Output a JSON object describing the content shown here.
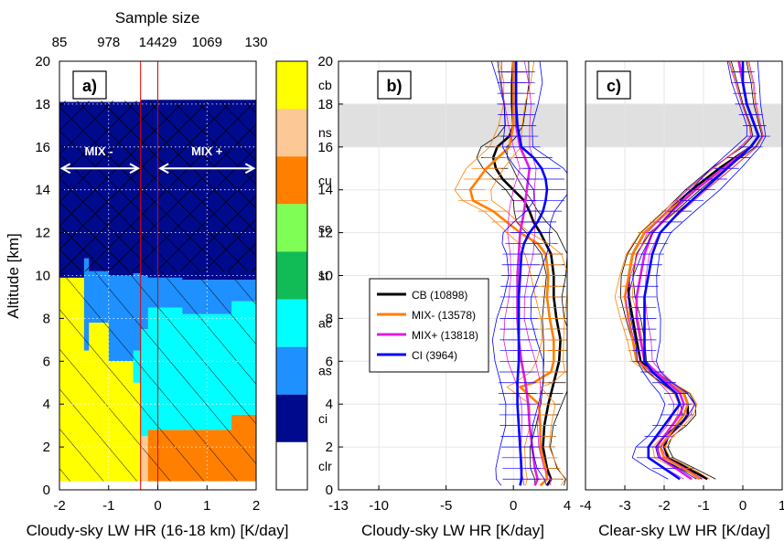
{
  "chart_data": [
    {
      "type": "heatmap",
      "panel_label": "a)",
      "xlabel": "Cloudy-sky LW HR (16-18 km) [K/day]",
      "ylabel": "Altitude [km]",
      "xlim": [
        -2,
        2
      ],
      "ylim": [
        0,
        20
      ],
      "x_ticks": [
        "-2",
        "-1",
        "0",
        "1",
        "2"
      ],
      "y_ticks": [
        "0",
        "2",
        "4",
        "6",
        "8",
        "10",
        "12",
        "14",
        "16",
        "18",
        "20"
      ],
      "top_axis": {
        "label": "Sample size",
        "ticks": [
          "85",
          "978",
          "14429",
          "1069",
          "130"
        ],
        "positions": [
          -2,
          -1,
          0,
          1,
          2
        ]
      },
      "classes": [
        "cb",
        "ns",
        "cu",
        "sc",
        "st",
        "ac",
        "as",
        "ci",
        "clr"
      ],
      "class_colors": {
        "cb": "#ffff00",
        "ns": "#fcc896",
        "cu": "#ff7f00",
        "sc": "#7fff55",
        "st": "#11bb55",
        "ac": "#00ffff",
        "as": "#1e90ff",
        "ci": "#000a8c",
        "clr": "#ffffff"
      },
      "region_labels": [
        "MIX -",
        "MIX +"
      ],
      "divider_x": [
        -0.35,
        0.0
      ],
      "columns": [
        {
          "x": [
            -2.0,
            -1.5
          ],
          "layers": [
            [
              "cb",
              0.4,
              9.9
            ],
            [
              "ci",
              9.9,
              18.1
            ]
          ]
        },
        {
          "x": [
            -1.5,
            -1.4
          ],
          "layers": [
            [
              "cb",
              0.4,
              6.5
            ],
            [
              "as",
              6.5,
              10.8
            ],
            [
              "ci",
              10.8,
              18.1
            ]
          ]
        },
        {
          "x": [
            -1.4,
            -1.0
          ],
          "layers": [
            [
              "cb",
              0.4,
              7.8
            ],
            [
              "as",
              7.8,
              10.2
            ],
            [
              "ci",
              10.2,
              18.1
            ]
          ]
        },
        {
          "x": [
            -1.0,
            -0.5
          ],
          "layers": [
            [
              "cb",
              0.4,
              6.0
            ],
            [
              "as",
              6.0,
              10.0
            ],
            [
              "ci",
              10.0,
              18.1
            ]
          ]
        },
        {
          "x": [
            -0.5,
            -0.35
          ],
          "layers": [
            [
              "cb",
              0.4,
              5.0
            ],
            [
              "ac",
              5.0,
              6.5
            ],
            [
              "as",
              6.5,
              10.1
            ],
            [
              "ci",
              10.1,
              18.1
            ]
          ]
        },
        {
          "x": [
            -0.35,
            -0.2
          ],
          "layers": [
            [
              "ns",
              0.4,
              2.5
            ],
            [
              "ac",
              2.5,
              7.5
            ],
            [
              "as",
              7.5,
              10.0
            ],
            [
              "ci",
              10.0,
              18.2
            ]
          ]
        },
        {
          "x": [
            -0.2,
            0.5
          ],
          "layers": [
            [
              "cu",
              0.4,
              2.8
            ],
            [
              "ac",
              2.8,
              8.5
            ],
            [
              "as",
              8.5,
              9.9
            ],
            [
              "ci",
              9.9,
              18.2
            ]
          ]
        },
        {
          "x": [
            0.5,
            1.5
          ],
          "layers": [
            [
              "cu",
              0.4,
              2.8
            ],
            [
              "ac",
              2.8,
              8.2
            ],
            [
              "as",
              8.2,
              9.8
            ],
            [
              "ci",
              9.8,
              18.2
            ]
          ]
        },
        {
          "x": [
            1.5,
            2.0
          ],
          "layers": [
            [
              "cu",
              0.4,
              3.5
            ],
            [
              "ac",
              3.5,
              8.8
            ],
            [
              "as",
              8.8,
              9.8
            ],
            [
              "ci",
              9.8,
              18.2
            ]
          ]
        }
      ]
    },
    {
      "type": "line",
      "panel_label": "b)",
      "xlabel": "Cloudy-sky LW HR [K/day]",
      "ylabel": "",
      "xlim": [
        -13,
        4
      ],
      "ylim": [
        0,
        20
      ],
      "x_ticks": [
        "-13",
        "-10",
        "-5",
        "0",
        "4"
      ],
      "x_tick_values": [
        -13,
        -10,
        -5,
        0,
        4
      ],
      "y_ticks": [
        "0",
        "2",
        "4",
        "6",
        "8",
        "10",
        "12",
        "14",
        "16",
        "18",
        "20"
      ],
      "shaded_band": [
        16,
        18
      ],
      "series": [
        {
          "name": "CB (10898)",
          "color": "#000000",
          "y": [
            0.2,
            0.5,
            1,
            2,
            3,
            4,
            5,
            6,
            7,
            8,
            9,
            10,
            11,
            12,
            12.5,
            13,
            13.5,
            14,
            14.5,
            15,
            15.5,
            16,
            16.5,
            17,
            18,
            19,
            20
          ],
          "x": [
            2.5,
            2.8,
            2.5,
            2.2,
            2.3,
            2.6,
            3.0,
            3.4,
            3.5,
            3.2,
            3.0,
            3.0,
            2.8,
            2.0,
            1.5,
            1.2,
            0.8,
            0.0,
            -0.8,
            -1.3,
            -1.5,
            -1.2,
            -0.3,
            0.0,
            -0.1,
            -0.1,
            0.0
          ]
        },
        {
          "name": "MIX- (13578)",
          "color": "#ff7f00",
          "y": [
            0.2,
            0.5,
            1,
            2,
            3,
            4,
            4.8,
            5,
            5.5,
            6,
            7,
            8,
            9,
            10,
            11,
            11.5,
            12,
            13,
            13.5,
            14,
            15,
            16,
            17,
            18,
            19,
            20
          ],
          "x": [
            2.0,
            2.5,
            2.4,
            2.0,
            2.0,
            1.9,
            0.5,
            1.5,
            2.8,
            3.0,
            3.0,
            2.7,
            2.5,
            2.6,
            2.4,
            1.8,
            0.5,
            -1.5,
            -3.0,
            -3.2,
            -2.0,
            -0.3,
            0.0,
            0.0,
            0.0,
            0.0
          ]
        },
        {
          "name": "MIX+ (13818)",
          "color": "#e01de0",
          "y": [
            0.2,
            0.5,
            1,
            2,
            3,
            4,
            5,
            6,
            7,
            8,
            9,
            10,
            11,
            12,
            13,
            14,
            15,
            16,
            17,
            18,
            19,
            20
          ],
          "x": [
            1.6,
            1.8,
            1.6,
            1.4,
            1.2,
            1.1,
            0.9,
            0.6,
            0.4,
            0.3,
            0.3,
            0.3,
            0.4,
            0.5,
            0.8,
            1.0,
            1.2,
            0.5,
            0.2,
            0.2,
            0.2,
            0.2
          ]
        },
        {
          "name": "CI (3964)",
          "color": "#0000ff",
          "y": [
            0.2,
            0.5,
            1,
            2,
            3,
            4,
            5,
            6,
            7,
            8,
            9,
            10,
            11,
            11.5,
            12,
            12.5,
            13,
            13.5,
            14,
            14.5,
            15,
            15.5,
            16,
            17,
            18,
            19,
            20
          ],
          "x": [
            0.5,
            0.6,
            0.6,
            0.5,
            0.4,
            0.3,
            0.3,
            0.4,
            0.4,
            0.4,
            0.4,
            0.5,
            0.6,
            0.8,
            1.2,
            1.8,
            2.2,
            2.4,
            2.5,
            2.4,
            2.1,
            1.5,
            0.6,
            0.3,
            0.2,
            0.2,
            0.2
          ]
        }
      ]
    },
    {
      "type": "line",
      "panel_label": "c)",
      "xlabel": "Clear-sky LW HR [K/day]",
      "ylabel": "",
      "xlim": [
        -4,
        1
      ],
      "ylim": [
        0,
        20
      ],
      "x_ticks": [
        "-4",
        "-3",
        "-2",
        "-1",
        "0",
        "1"
      ],
      "x_tick_values": [
        -4,
        -3,
        -2,
        -1,
        0,
        1
      ],
      "y_ticks": [
        "0",
        "2",
        "4",
        "6",
        "8",
        "10",
        "12",
        "14",
        "16",
        "18",
        "20"
      ],
      "shaded_band": [
        16,
        18
      ],
      "series": [
        {
          "name": "CB (10898)",
          "color": "#000000",
          "y": [
            0.5,
            1,
            1.5,
            2,
            2.5,
            3,
            3.5,
            4,
            4.5,
            5,
            5.5,
            6,
            7,
            8,
            9,
            10,
            11,
            12,
            13,
            14,
            15,
            16,
            16.5,
            17,
            18,
            19,
            20
          ],
          "x": [
            -0.9,
            -1.4,
            -1.9,
            -2.0,
            -1.9,
            -1.6,
            -1.4,
            -1.4,
            -1.5,
            -1.9,
            -2.3,
            -2.6,
            -2.7,
            -2.8,
            -2.9,
            -2.9,
            -2.8,
            -2.5,
            -1.9,
            -1.3,
            -0.6,
            0.2,
            0.4,
            0.3,
            0.1,
            0.0,
            -0.1
          ]
        },
        {
          "name": "MIX- (13578)",
          "color": "#ff7f00",
          "y": [
            0.5,
            1,
            1.5,
            2,
            2.5,
            3,
            3.5,
            4,
            4.5,
            5,
            5.5,
            6,
            7,
            8,
            9,
            10,
            11,
            12,
            13,
            14,
            15,
            16,
            16.5,
            17,
            18,
            19,
            20
          ],
          "x": [
            -1.1,
            -1.5,
            -2.0,
            -2.1,
            -1.9,
            -1.7,
            -1.5,
            -1.4,
            -1.5,
            -1.9,
            -2.3,
            -2.7,
            -2.8,
            -2.9,
            -3.0,
            -2.9,
            -2.8,
            -2.5,
            -1.9,
            -1.2,
            -0.5,
            0.2,
            0.4,
            0.3,
            0.1,
            0.0,
            -0.1
          ]
        },
        {
          "name": "MIX+ (13818)",
          "color": "#e01de0",
          "y": [
            0.5,
            1,
            1.5,
            2,
            2.5,
            3,
            3.5,
            4,
            4.5,
            5,
            5.5,
            6,
            7,
            8,
            9,
            10,
            11,
            12,
            13,
            14,
            15,
            16,
            16.5,
            17,
            18,
            19,
            20
          ],
          "x": [
            -1.3,
            -1.7,
            -2.1,
            -2.2,
            -2.0,
            -1.8,
            -1.6,
            -1.5,
            -1.6,
            -1.9,
            -2.2,
            -2.5,
            -2.6,
            -2.7,
            -2.7,
            -2.6,
            -2.5,
            -2.3,
            -1.8,
            -1.2,
            -0.5,
            0.2,
            0.4,
            0.3,
            0.1,
            0.0,
            -0.1
          ]
        },
        {
          "name": "CI (3964)",
          "color": "#0000ff",
          "y": [
            0.5,
            1,
            1.5,
            2,
            2.5,
            3,
            3.5,
            4,
            4.5,
            5,
            5.5,
            6,
            7,
            8,
            9,
            10,
            11,
            12,
            13,
            14,
            15,
            16,
            16.5,
            17,
            18,
            19,
            20
          ],
          "x": [
            -1.6,
            -2.0,
            -2.4,
            -2.4,
            -2.2,
            -2.0,
            -1.8,
            -1.6,
            -1.7,
            -2.0,
            -2.3,
            -2.5,
            -2.5,
            -2.5,
            -2.5,
            -2.4,
            -2.3,
            -2.1,
            -1.6,
            -1.0,
            -0.4,
            0.2,
            0.4,
            0.3,
            0.1,
            0.0,
            0.0
          ]
        }
      ]
    }
  ]
}
